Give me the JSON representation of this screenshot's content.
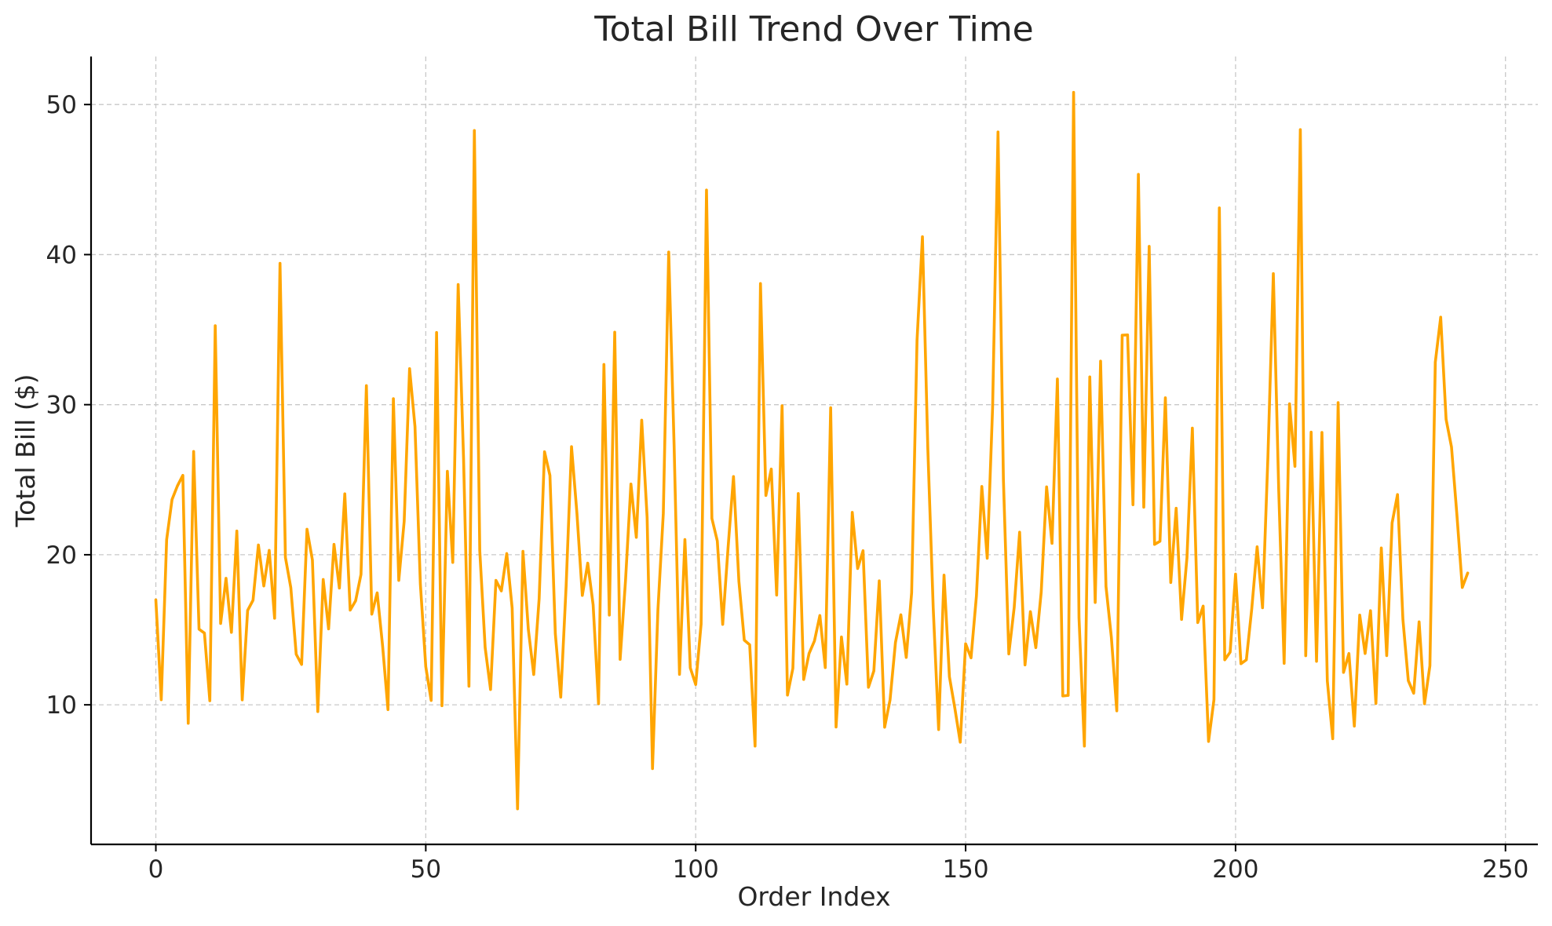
{
  "chart_data": {
    "type": "line",
    "title": "Total Bill Trend Over Time",
    "xlabel": "Order Index",
    "ylabel": "Total Bill ($)",
    "xlim": [
      -12,
      256
    ],
    "ylim": [
      0.7,
      53.2
    ],
    "xticks": [
      0,
      50,
      100,
      150,
      200,
      250
    ],
    "yticks": [
      10,
      20,
      30,
      40,
      50
    ],
    "grid": true,
    "legend": "none",
    "line_color": "#FFA500",
    "series": [
      {
        "x_start": 0,
        "values": [
          16.99,
          10.34,
          21.01,
          23.68,
          24.59,
          25.29,
          8.77,
          26.88,
          15.04,
          14.78,
          10.27,
          35.26,
          15.42,
          18.43,
          14.83,
          21.58,
          10.33,
          16.29,
          16.97,
          20.65,
          17.92,
          20.29,
          15.77,
          39.42,
          19.82,
          17.81,
          13.37,
          12.69,
          21.7,
          19.65,
          9.55,
          18.35,
          15.06,
          20.69,
          17.78,
          24.06,
          16.31,
          16.93,
          18.69,
          31.27,
          16.04,
          17.46,
          13.94,
          9.68,
          30.4,
          18.29,
          22.23,
          32.4,
          28.55,
          18.04,
          12.54,
          10.29,
          34.81,
          9.94,
          25.56,
          19.49,
          38.01,
          26.41,
          11.24,
          48.27,
          20.29,
          13.81,
          11.02,
          18.29,
          17.59,
          20.08,
          16.45,
          3.07,
          20.23,
          15.01,
          12.02,
          17.07,
          26.86,
          25.28,
          14.73,
          10.51,
          17.92,
          27.2,
          22.76,
          17.29,
          19.44,
          16.66,
          10.07,
          32.68,
          15.98,
          34.83,
          13.03,
          18.28,
          24.71,
          21.16,
          28.97,
          22.49,
          5.75,
          16.32,
          22.75,
          40.17,
          27.28,
          12.03,
          21.01,
          12.46,
          11.35,
          15.38,
          44.3,
          22.42,
          20.92,
          15.36,
          20.49,
          25.21,
          18.24,
          14.31,
          14.0,
          7.25,
          38.07,
          23.95,
          25.71,
          17.31,
          29.93,
          10.65,
          12.43,
          24.08,
          11.69,
          13.42,
          14.26,
          15.95,
          12.48,
          29.8,
          8.52,
          14.52,
          11.38,
          22.82,
          19.08,
          20.27,
          11.17,
          12.26,
          18.26,
          8.51,
          10.33,
          14.15,
          16.0,
          13.16,
          17.47,
          34.3,
          41.19,
          27.05,
          16.43,
          8.35,
          18.64,
          11.87,
          9.78,
          7.51,
          14.07,
          13.13,
          17.26,
          24.55,
          19.77,
          29.85,
          48.17,
          25.0,
          13.39,
          16.49,
          21.5,
          12.66,
          16.21,
          13.81,
          17.51,
          24.52,
          20.76,
          31.71,
          10.59,
          10.63,
          50.81,
          15.81,
          7.25,
          31.85,
          16.82,
          32.9,
          17.89,
          14.48,
          9.6,
          34.63,
          34.65,
          23.33,
          45.35,
          23.17,
          40.55,
          20.69,
          20.9,
          30.46,
          18.15,
          23.1,
          15.69,
          19.81,
          28.44,
          15.48,
          16.58,
          7.56,
          10.34,
          43.11,
          13.0,
          13.51,
          18.71,
          12.74,
          13.0,
          16.4,
          20.53,
          16.47,
          26.59,
          38.73,
          24.27,
          12.76,
          30.06,
          25.89,
          48.33,
          13.27,
          28.17,
          12.9,
          28.15,
          11.59,
          7.74,
          30.14,
          12.16,
          13.42,
          8.58,
          15.98,
          13.42,
          16.27,
          10.09,
          20.45,
          13.28,
          22.12,
          24.01,
          15.69,
          11.61,
          10.77,
          15.53,
          10.07,
          12.6,
          32.83,
          35.83,
          29.03,
          27.18,
          22.67,
          17.82,
          18.78
        ]
      }
    ]
  }
}
